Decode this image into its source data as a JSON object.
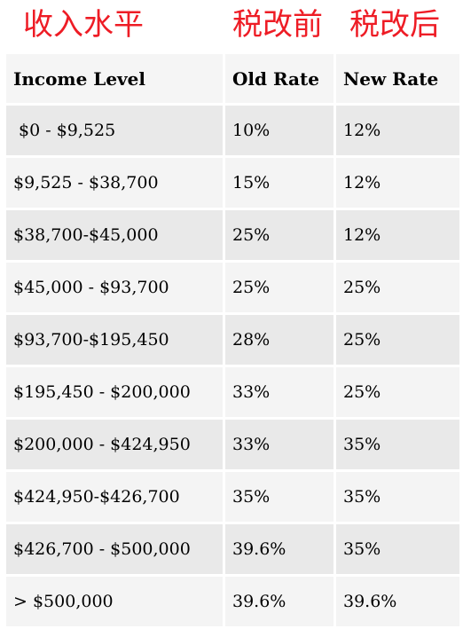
{
  "labels": {
    "income": "收入水平",
    "before": "税改前",
    "after": "税改后"
  },
  "colors": {
    "label_red": "#ee1c25",
    "header_bg": "#f5f5f5",
    "row_dark": "#e9e9e9",
    "row_light": "#f4f4f4"
  },
  "table": {
    "headers": [
      "Income Level",
      "Old Rate",
      "New Rate"
    ],
    "rows": [
      {
        "income": " $0 - $9,525",
        "old_rate": "10%",
        "new_rate": "12%"
      },
      {
        "income": "$9,525 - $38,700",
        "old_rate": "15%",
        "new_rate": "12%"
      },
      {
        "income": "$38,700-$45,000",
        "old_rate": "25%",
        "new_rate": "12%"
      },
      {
        "income": "$45,000 - $93,700",
        "old_rate": "25%",
        "new_rate": "25%"
      },
      {
        "income": "$93,700-$195,450",
        "old_rate": "28%",
        "new_rate": "25%"
      },
      {
        "income": "$195,450 - $200,000",
        "old_rate": "33%",
        "new_rate": "25%"
      },
      {
        "income": "$200,000 - $424,950",
        "old_rate": "33%",
        "new_rate": "35%"
      },
      {
        "income": "$424,950-$426,700",
        "old_rate": "35%",
        "new_rate": "35%"
      },
      {
        "income": "$426,700 - $500,000",
        "old_rate": "39.6%",
        "new_rate": "35%"
      },
      {
        "income": "> $500,000",
        "old_rate": "39.6%",
        "new_rate": "39.6%"
      }
    ]
  }
}
